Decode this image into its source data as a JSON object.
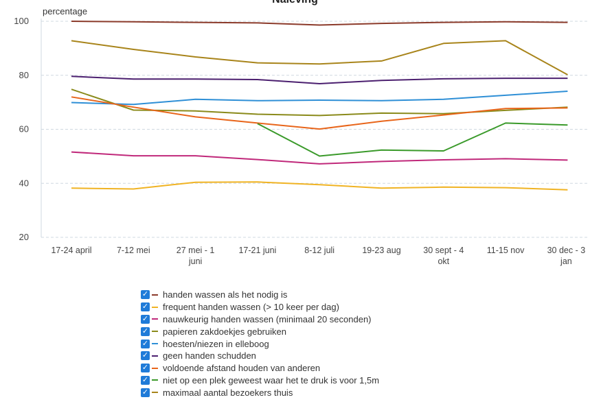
{
  "chart_data": {
    "type": "line",
    "title": "Naleving",
    "ylabel": "percentage",
    "ylim": [
      20,
      100
    ],
    "yticks": [
      20,
      40,
      60,
      80,
      100
    ],
    "grid": "horizontal-dashed",
    "legend_position": "bottom",
    "categories": [
      "17-24 april",
      "7-12 mei",
      "27 mei - 1 juni",
      "17-21 juni",
      "8-12 juli",
      "19-23 aug",
      "30 sept - 4 okt",
      "11-15 nov",
      "30 dec - 3 jan"
    ],
    "series": [
      {
        "name": "handen wassen als het nodig is",
        "color": "#8b3a2a",
        "checked": true,
        "values": [
          100,
          99.8,
          99.6,
          99.4,
          98.6,
          99.2,
          99.6,
          99.8,
          99.6
        ]
      },
      {
        "name": "frequent handen wassen (> 10 keer per dag)",
        "color": "#f0b323",
        "checked": true,
        "values": [
          38.2,
          37.9,
          40.4,
          40.5,
          39.5,
          38.2,
          38.6,
          38.4,
          37.6
        ]
      },
      {
        "name": "nauwkeurig handen wassen (minimaal 20 seconden)",
        "color": "#c0287a",
        "checked": true,
        "values": [
          51.6,
          50.2,
          50.2,
          48.8,
          47.2,
          48.1,
          48.7,
          49.1,
          48.6
        ]
      },
      {
        "name": "papieren zakdoekjes gebruiken",
        "color": "#8a8a1a",
        "checked": true,
        "values": [
          74.8,
          67.1,
          66.8,
          65.6,
          65.1,
          66.0,
          65.8,
          67.0,
          68.2
        ]
      },
      {
        "name": "hoesten/niezen in elleboog",
        "color": "#2e8fd6",
        "checked": true,
        "values": [
          69.9,
          69.2,
          71.1,
          70.6,
          70.8,
          70.6,
          71.1,
          72.6,
          74.1
        ]
      },
      {
        "name": "geen handen schudden",
        "color": "#4b1f6f",
        "checked": true,
        "values": [
          79.6,
          78.6,
          78.6,
          78.4,
          76.9,
          78.1,
          78.7,
          78.9,
          78.9
        ]
      },
      {
        "name": "voldoende afstand houden van anderen",
        "color": "#e8651a",
        "checked": true,
        "values": [
          72.0,
          68.2,
          64.6,
          62.3,
          60.1,
          63.0,
          65.3,
          67.7,
          67.9
        ]
      },
      {
        "name": "niet op een plek geweest waar het te druk is voor 1,5m",
        "color": "#3a9a2a",
        "checked": true,
        "values": [
          null,
          null,
          null,
          62.1,
          50.1,
          52.3,
          52.0,
          62.3,
          61.6
        ]
      },
      {
        "name": "maximaal aantal bezoekers thuis",
        "color": "#a8841a",
        "checked": true,
        "values": [
          92.8,
          89.6,
          86.8,
          84.6,
          84.2,
          85.3,
          91.8,
          92.8,
          80.2
        ]
      }
    ]
  }
}
